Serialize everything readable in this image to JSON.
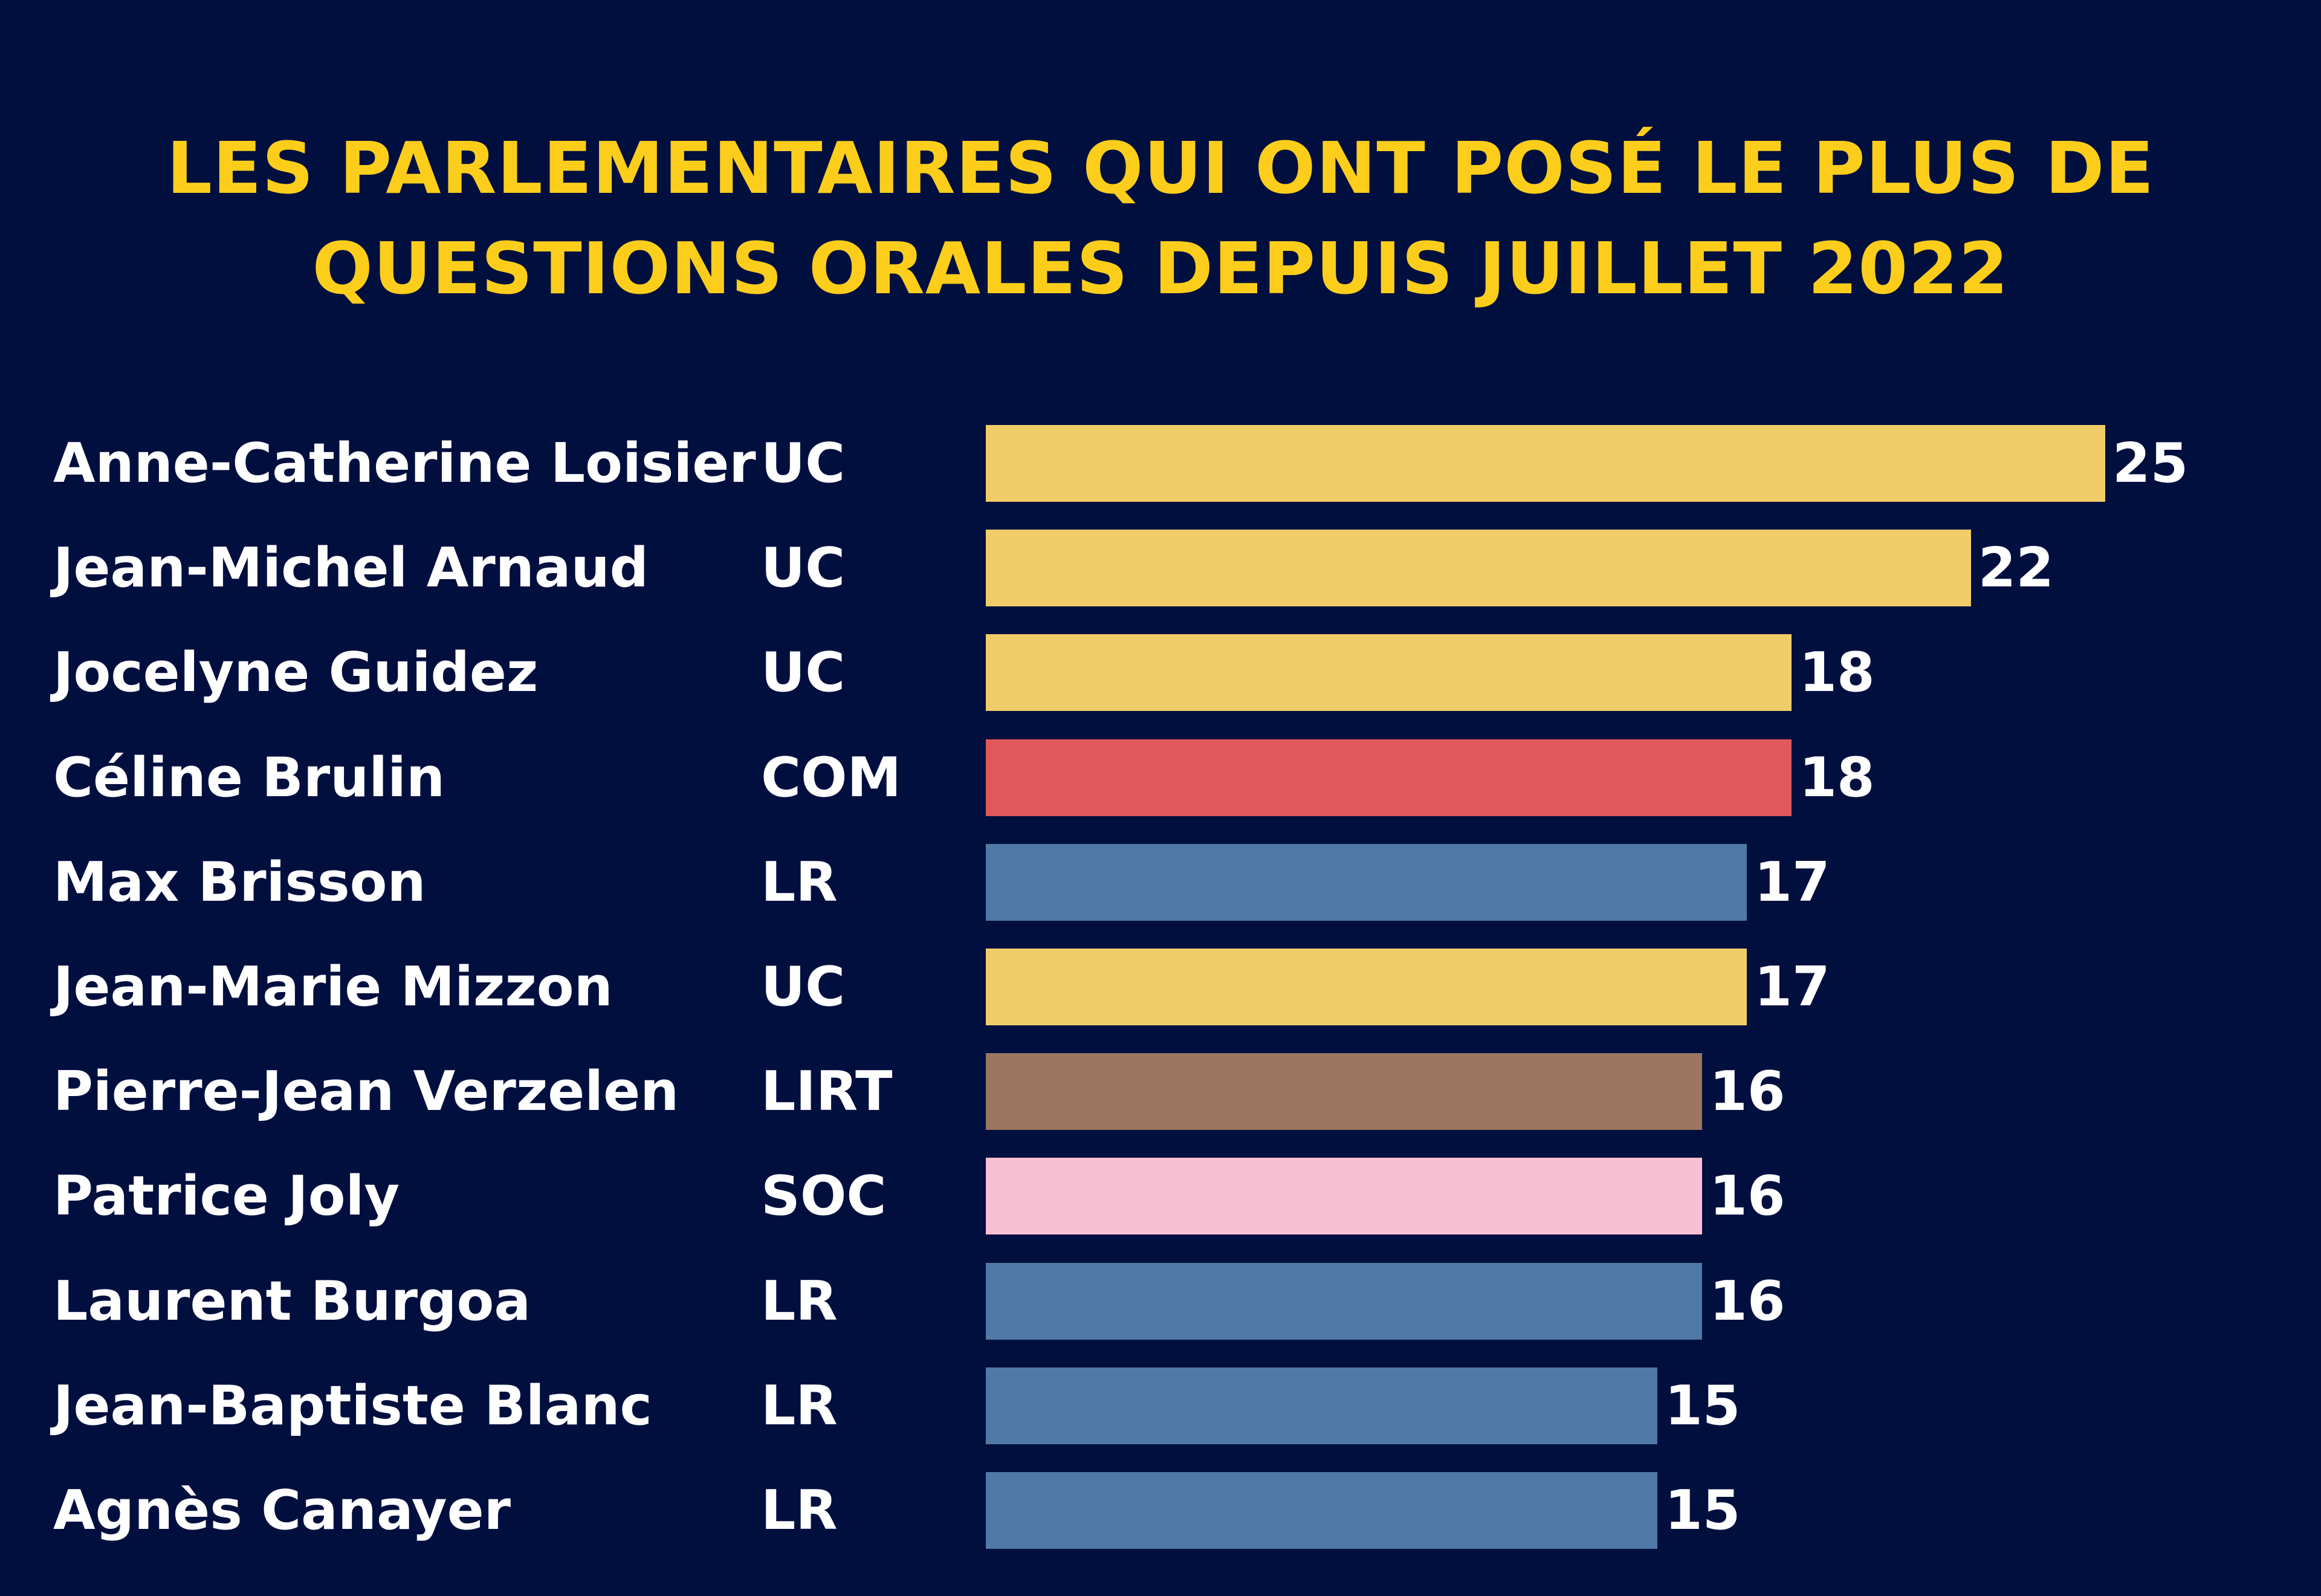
{
  "chart_data": {
    "type": "bar",
    "orientation": "horizontal",
    "title": "LES PARLEMENTAIRES QUI ONT POSÉ LE PLUS DE QUESTIONS ORALES DEPUIS JUILLET 2022",
    "title_lines": [
      "LES PARLEMENTAIRES QUI ONT POSÉ LE PLUS DE",
      "QUESTIONS ORALES DEPUIS JUILLET 2022"
    ],
    "xlabel": "",
    "ylabel": "",
    "xlim": [
      0,
      25
    ],
    "grid": false,
    "legend": "none",
    "categories": [
      "Anne-Catherine Loisier",
      "Jean-Michel Arnaud",
      "Jocelyne Guidez",
      "Céline Brulin",
      "Max Brisson",
      "Jean-Marie Mizzon",
      "Pierre-Jean Verzelen",
      "Patrice Joly",
      "Laurent Burgoa",
      "Jean-Baptiste Blanc",
      "Agnès Canayer"
    ],
    "groups": [
      "UC",
      "UC",
      "UC",
      "COM",
      "LR",
      "UC",
      "LIRT",
      "SOC",
      "LR",
      "LR",
      "LR"
    ],
    "values": [
      25,
      22,
      18,
      18,
      17,
      17,
      16,
      16,
      16,
      15,
      15
    ],
    "group_colors": {
      "UC": "#f0cd68",
      "COM": "#e0585b",
      "LR": "#4f79a7",
      "LIRT": "#9b7660",
      "SOC": "#f9bfd2"
    }
  },
  "colors": {
    "background": "#010f3f",
    "title": "#fcce1b",
    "text": "#ffffff"
  }
}
